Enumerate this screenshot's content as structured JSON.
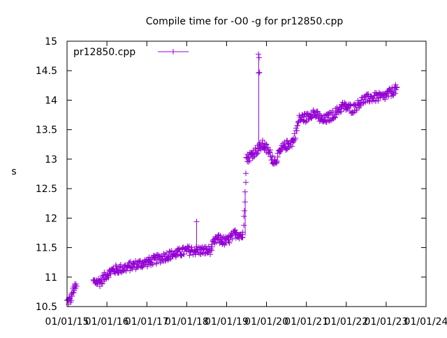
{
  "chart_data": {
    "type": "scatter",
    "title": "Compile time for -O0 -g for pr12850.cpp",
    "xlabel": "",
    "ylabel": "s",
    "ylim": [
      10.5,
      15
    ],
    "yticks": [
      "10.5",
      "11",
      "11.5",
      "12",
      "12.5",
      "13",
      "13.5",
      "14",
      "14.5",
      "15"
    ],
    "xticks": [
      "01/01/15",
      "01/01/16",
      "01/01/17",
      "01/01/18",
      "01/01/19",
      "01/01/20",
      "01/01/21",
      "01/01/22",
      "01/01/23",
      "01/01/24"
    ],
    "xlim": [
      "2015-01-01",
      "2024-01-01"
    ],
    "legend_position": "top-left",
    "grid": false,
    "series": [
      {
        "name": "pr12850.cpp",
        "color": "#9400d3",
        "marker": "plus",
        "trend": [
          [
            "2015-01-01",
            10.58
          ],
          [
            "2015-02-01",
            10.62
          ],
          [
            "2015-03-01",
            10.78
          ],
          [
            "2015-04-01",
            10.85
          ],
          [
            "2015-09-01",
            10.92
          ],
          [
            "2015-11-01",
            10.92
          ],
          [
            "2016-01-01",
            11.05
          ],
          [
            "2016-03-01",
            11.12
          ],
          [
            "2016-06-01",
            11.15
          ],
          [
            "2016-09-01",
            11.2
          ],
          [
            "2017-01-01",
            11.25
          ],
          [
            "2017-04-01",
            11.3
          ],
          [
            "2017-07-01",
            11.36
          ],
          [
            "2017-10-01",
            11.4
          ],
          [
            "2018-01-01",
            11.45
          ],
          [
            "2018-05-01",
            11.45
          ],
          [
            "2018-08-01",
            11.45
          ],
          [
            "2018-10-01",
            11.65
          ],
          [
            "2019-01-01",
            11.6
          ],
          [
            "2019-04-01",
            11.75
          ],
          [
            "2019-06-01",
            11.7
          ],
          [
            "2019-07-01",
            13.0
          ],
          [
            "2019-09-01",
            13.1
          ],
          [
            "2019-12-01",
            13.25
          ],
          [
            "2020-02-01",
            13.1
          ],
          [
            "2020-03-15",
            12.95
          ],
          [
            "2020-06-01",
            13.2
          ],
          [
            "2020-09-01",
            13.3
          ],
          [
            "2020-11-01",
            13.7
          ],
          [
            "2021-01-01",
            13.7
          ],
          [
            "2021-03-01",
            13.8
          ],
          [
            "2021-06-01",
            13.65
          ],
          [
            "2021-09-01",
            13.75
          ],
          [
            "2021-12-01",
            13.9
          ],
          [
            "2022-03-01",
            13.85
          ],
          [
            "2022-06-01",
            14.0
          ],
          [
            "2022-09-01",
            14.05
          ],
          [
            "2022-12-01",
            14.05
          ],
          [
            "2023-03-01",
            14.15
          ],
          [
            "2023-04-15",
            14.2
          ]
        ],
        "outliers": [
          [
            "2018-04-01",
            11.94
          ],
          [
            "2019-10-20",
            14.78
          ],
          [
            "2019-10-25",
            14.72
          ],
          [
            "2019-10-22",
            14.46
          ],
          [
            "2019-10-28",
            14.47
          ]
        ]
      }
    ]
  }
}
